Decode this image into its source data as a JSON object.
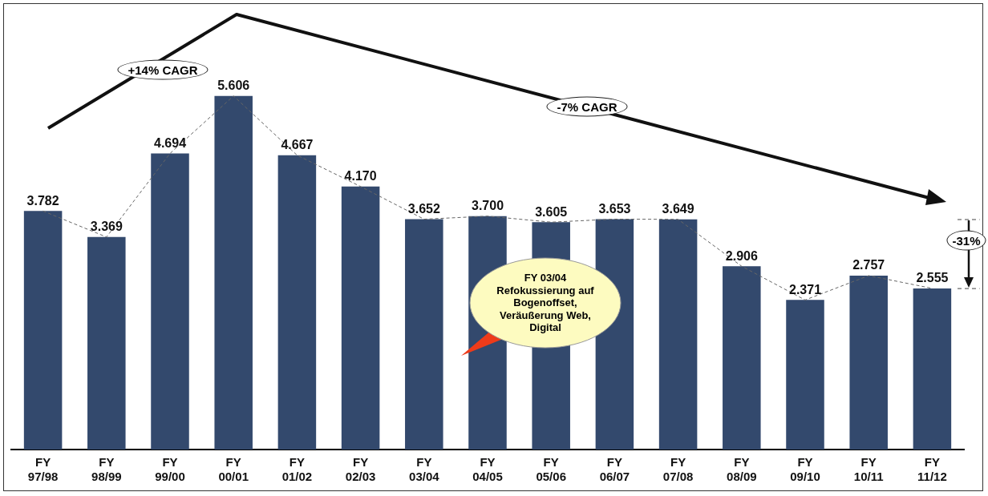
{
  "chart_data": {
    "type": "bar",
    "categories": [
      "FY 97/98",
      "FY 98/99",
      "FY 99/00",
      "FY 00/01",
      "FY 01/02",
      "FY 02/03",
      "FY 03/04",
      "FY 04/05",
      "FY 05/06",
      "FY 06/07",
      "FY 07/08",
      "FY 08/09",
      "FY 09/10",
      "FY 10/11",
      "FY 11/12"
    ],
    "series": [
      {
        "color": "#33496d",
        "values": [
          3782,
          3369,
          4694,
          5606,
          4667,
          4170,
          3652,
          3700,
          3605,
          3653,
          3649,
          2906,
          2371,
          2757,
          2555
        ],
        "value_labels": [
          "3.782",
          "3.369",
          "4.694",
          "5.606",
          "4.667",
          "4.170",
          "3.652",
          "3.700",
          "3.605",
          "3.653",
          "3.649",
          "2.906",
          "2.371",
          "2.757",
          "2.555"
        ]
      },
      {
        "type": "line",
        "color": "#666666",
        "line_style": "dashed",
        "marker": "none",
        "values": [
          3782,
          3369,
          4694,
          5606,
          4667,
          4170,
          3652,
          3700,
          3605,
          3653,
          3649,
          2906,
          2371,
          2757,
          2555
        ]
      }
    ],
    "tick_labels": "x",
    "grid": false,
    "legend": false,
    "annotations": [
      "+14% CAGR",
      "-7% CAGR",
      "-31%",
      "FY 03/04\nRefokussierung auf Bogenoffset, Veräußerung Web, Digital"
    ]
  }
}
